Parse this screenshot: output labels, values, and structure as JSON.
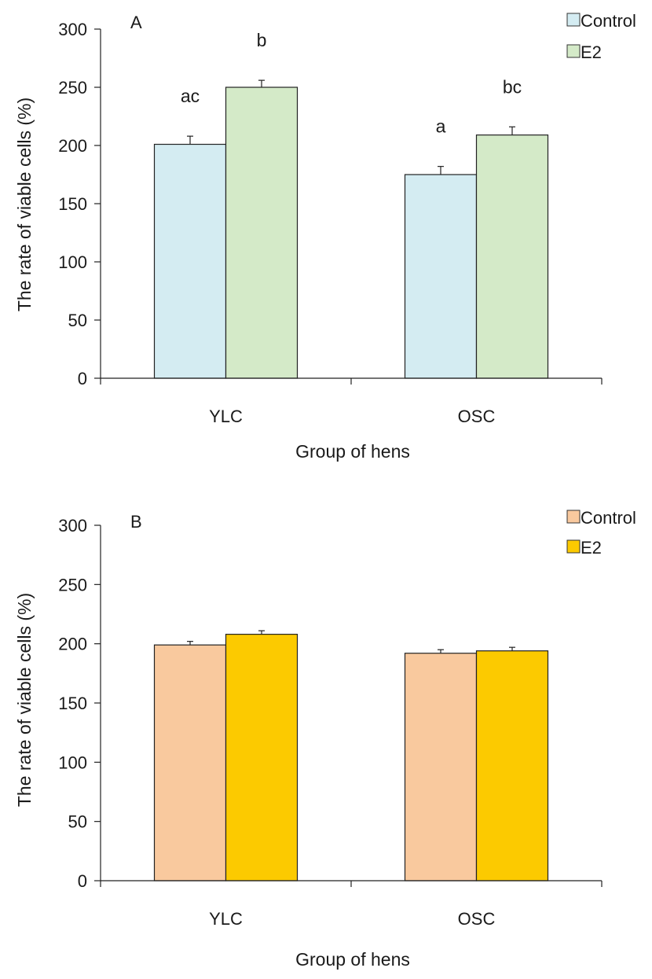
{
  "chart_data": [
    {
      "type": "bar",
      "panel_label": "A",
      "categories": [
        "YLC",
        "OSC"
      ],
      "series": [
        {
          "name": "Control",
          "color": "#d4ecf2",
          "values": [
            201,
            175
          ],
          "errors": [
            7,
            7
          ],
          "labels": [
            "ac",
            "a"
          ]
        },
        {
          "name": "E2",
          "color": "#d4eac8",
          "values": [
            250,
            209
          ],
          "errors": [
            6,
            7
          ],
          "labels": [
            "b",
            "bc"
          ]
        }
      ],
      "xlabel": "Group of hens",
      "ylabel": "The rate of viable cells (%)",
      "ylim": [
        0,
        300
      ],
      "yticks": [
        "0",
        "50",
        "100",
        "150",
        "200",
        "250",
        "300"
      ],
      "grid": false,
      "legend_position": "top-right"
    },
    {
      "type": "bar",
      "panel_label": "B",
      "categories": [
        "YLC",
        "OSC"
      ],
      "series": [
        {
          "name": "Control",
          "color": "#f9c99e",
          "values": [
            199,
            192
          ],
          "errors": [
            3,
            3
          ],
          "labels": [
            "",
            ""
          ]
        },
        {
          "name": "E2",
          "color": "#fcca00",
          "values": [
            208,
            194
          ],
          "errors": [
            3,
            3
          ],
          "labels": [
            "",
            ""
          ]
        }
      ],
      "xlabel": "Group of hens",
      "ylabel": "The rate of viable cells (%)",
      "ylim": [
        0,
        300
      ],
      "yticks": [
        "0",
        "50",
        "100",
        "150",
        "200",
        "250",
        "300"
      ],
      "grid": false,
      "legend_position": "top-right"
    }
  ]
}
